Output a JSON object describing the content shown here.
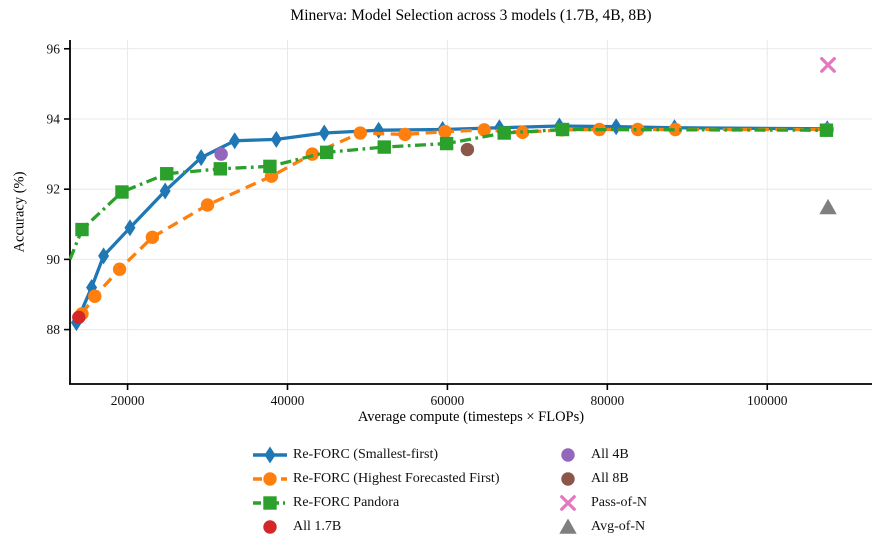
{
  "chart_data": {
    "type": "line",
    "title": "Minerva: Model Selection across 3 models (1.7B, 4B, 8B)",
    "xlabel": "Average compute (timesteps × FLOPs)",
    "ylabel": "Accuracy (%)",
    "xlim": [
      12800,
      113100
    ],
    "ylim": [
      86.45,
      96.25
    ],
    "xticks": [
      20000,
      40000,
      60000,
      80000,
      100000
    ],
    "yticks": [
      88,
      90,
      92,
      94,
      96
    ],
    "grid": true,
    "grid_color": "#e8e8e8",
    "series": [
      {
        "name": "Re-FORC (Smallest-first)",
        "color": "#1f77b4",
        "line": "solid",
        "marker": "thin-diamond",
        "marker_start_index": 0,
        "x": [
          13600,
          15500,
          17000,
          20300,
          24700,
          29200,
          33400,
          38600,
          44600,
          51400,
          59400,
          66500,
          74000,
          81100,
          88400,
          107500
        ],
        "y": [
          88.2,
          89.2,
          90.1,
          90.9,
          91.95,
          92.9,
          93.38,
          93.42,
          93.6,
          93.68,
          93.7,
          93.75,
          93.8,
          93.78,
          93.75,
          93.72
        ]
      },
      {
        "name": "Re-FORC (Highest Forecasted First)",
        "color": "#ff7f0e",
        "line": "dashed",
        "marker": "circle",
        "marker_start_index": 0,
        "x": [
          14300,
          15900,
          19000,
          23100,
          30000,
          38000,
          43100,
          49100,
          54700,
          59700,
          64600,
          69400,
          74300,
          79000,
          83800,
          88500,
          107500
        ],
        "y": [
          88.45,
          88.95,
          89.72,
          90.63,
          91.55,
          92.37,
          93.0,
          93.6,
          93.56,
          93.64,
          93.69,
          93.62,
          93.69,
          93.7,
          93.7,
          93.7,
          93.7
        ]
      },
      {
        "name": "Re-FORC Pandora",
        "color": "#2ca02c",
        "line": "dashdot",
        "marker": "square",
        "marker_start_index": 1,
        "x": [
          12800,
          14300,
          19300,
          24900,
          31600,
          37800,
          44900,
          52100,
          59900,
          67100,
          74400,
          107400
        ],
        "y": [
          90.0,
          90.85,
          91.92,
          92.44,
          92.58,
          92.65,
          93.05,
          93.2,
          93.3,
          93.6,
          93.7,
          93.68
        ]
      }
    ],
    "points": [
      {
        "name": "All 1.7B",
        "color": "#d62728",
        "marker": "circle",
        "x": 13900,
        "y": 88.35
      },
      {
        "name": "All 4B",
        "color": "#9467bd",
        "marker": "circle",
        "x": 31700,
        "y": 93.0
      },
      {
        "name": "All 8B",
        "color": "#8c564b",
        "marker": "circle",
        "x": 62500,
        "y": 93.13
      },
      {
        "name": "Pass-of-N",
        "color": "#e377c2",
        "marker": "x",
        "x": 107600,
        "y": 95.54
      },
      {
        "name": "Avg-of-N",
        "color": "#7f7f7f",
        "marker": "triangle",
        "x": 107600,
        "y": 91.48
      }
    ],
    "legend_columns": [
      [
        "series:0",
        "series:1",
        "series:2",
        "point:0"
      ],
      [
        "point:1",
        "point:2",
        "point:3",
        "point:4"
      ]
    ],
    "legend_position": "below"
  }
}
